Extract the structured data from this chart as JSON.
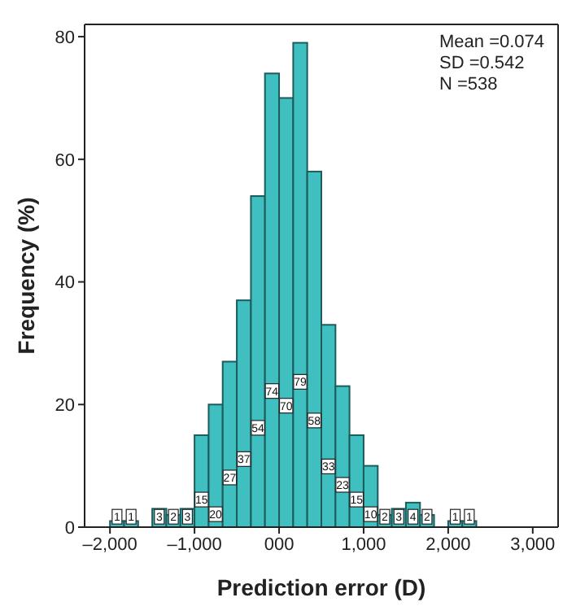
{
  "chart_data": {
    "type": "histogram",
    "xlabel": "Prediction error (D)",
    "ylabel": "Frequency (%)",
    "annotations": [
      "Mean =0.074",
      "SD =0.542",
      "N =538"
    ],
    "bins": [
      -2000,
      -1833,
      -1667,
      -1500,
      -1333,
      -1167,
      -1000,
      -833,
      -667,
      -500,
      -333,
      -167,
      0,
      167,
      333,
      500,
      667,
      833,
      1000,
      1167,
      1333,
      1500,
      1667,
      1833,
      2000,
      2167,
      2333
    ],
    "values": [
      1,
      1,
      0,
      3,
      2,
      3,
      15,
      20,
      27,
      37,
      54,
      74,
      70,
      79,
      58,
      33,
      23,
      15,
      10,
      2,
      3,
      4,
      2,
      0,
      1,
      1
    ],
    "value_labels": [
      "1",
      "1",
      null,
      "3",
      "2",
      "3",
      "15",
      "20",
      "27",
      "37",
      "54",
      "74",
      "70",
      "79",
      "58",
      "33",
      "23",
      "15",
      "10",
      "2",
      "3",
      "4",
      "2",
      null,
      "1",
      "1"
    ],
    "color": "#3fbfc0",
    "xlim": [
      -2300,
      3300
    ],
    "xticks": [
      {
        "value": -2000,
        "label": "–2,000"
      },
      {
        "value": -1000,
        "label": "–1,000"
      },
      {
        "value": 0,
        "label": "000"
      },
      {
        "value": 1000,
        "label": "1,000"
      },
      {
        "value": 2000,
        "label": "2,000"
      },
      {
        "value": 3000,
        "label": "3,000"
      }
    ],
    "ylim": [
      0,
      82
    ],
    "yticks": [
      0,
      20,
      40,
      60,
      80
    ],
    "grid": false
  }
}
